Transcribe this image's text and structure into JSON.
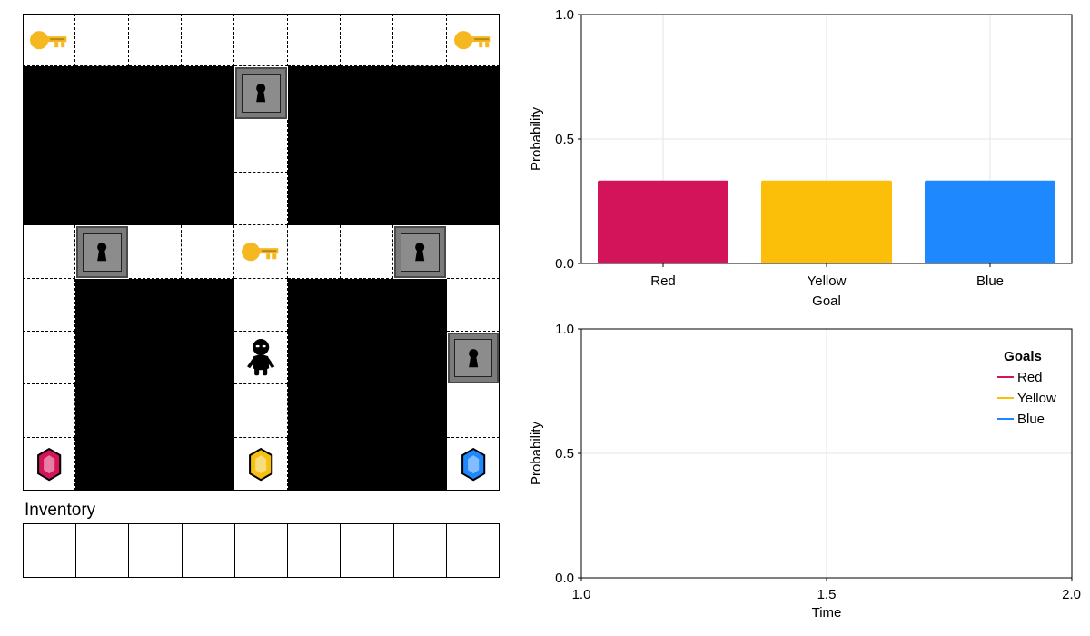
{
  "grid": {
    "cols": 9,
    "rows": 9,
    "layout": [
      "fffffffff",
      "wwwwdwwww",
      "wwwwfwwww",
      "wwwwfwwww",
      "fdfffffdf",
      "fwwwfwwwf",
      "fwwwfwwwd",
      "fwwwfwwwf",
      "fwwwfwwwf"
    ],
    "objects": [
      {
        "type": "key",
        "row": 0,
        "col": 0,
        "icon": "key-icon",
        "color": "#f5b821"
      },
      {
        "type": "key",
        "row": 0,
        "col": 8,
        "icon": "key-icon",
        "color": "#f5b821"
      },
      {
        "type": "key",
        "row": 4,
        "col": 4,
        "icon": "key-icon",
        "color": "#f5b821"
      },
      {
        "type": "agent",
        "row": 6,
        "col": 4,
        "icon": "agent-icon",
        "color": "#000000"
      },
      {
        "type": "gem",
        "row": 8,
        "col": 0,
        "icon": "gem-icon",
        "color": "#d4145a",
        "name": "red-gem"
      },
      {
        "type": "gem",
        "row": 8,
        "col": 4,
        "icon": "gem-icon",
        "color": "#f5c010",
        "name": "yellow-gem"
      },
      {
        "type": "gem",
        "row": 8,
        "col": 8,
        "icon": "gem-icon",
        "color": "#1e88ff",
        "name": "blue-gem"
      }
    ],
    "door_icon": "keyhole-icon"
  },
  "inventory": {
    "title": "Inventory",
    "slots": 9
  },
  "chart_data": [
    {
      "type": "bar",
      "categories": [
        "Red",
        "Yellow",
        "Blue"
      ],
      "values": [
        0.333,
        0.333,
        0.333
      ],
      "colors": [
        "#d4145a",
        "#fbbf0a",
        "#1e88ff"
      ],
      "xlabel": "Goal",
      "ylabel": "Probability",
      "ylim": [
        0,
        1
      ],
      "yticks": [
        "0.0",
        "0.5",
        "1.0"
      ],
      "grid": true
    },
    {
      "type": "line",
      "xlabel": "Time",
      "ylabel": "Probability",
      "xlim": [
        1,
        2
      ],
      "ylim": [
        0,
        1
      ],
      "xticks": [
        "1.0",
        "1.5",
        "2.0"
      ],
      "yticks": [
        "0.0",
        "0.5",
        "1.0"
      ],
      "grid": true,
      "legend": {
        "title": "Goals",
        "placement": "top-right",
        "entries": [
          {
            "name": "Red",
            "color": "#d4145a"
          },
          {
            "name": "Yellow",
            "color": "#fbbf0a"
          },
          {
            "name": "Blue",
            "color": "#1e88ff"
          }
        ]
      },
      "series": []
    }
  ]
}
